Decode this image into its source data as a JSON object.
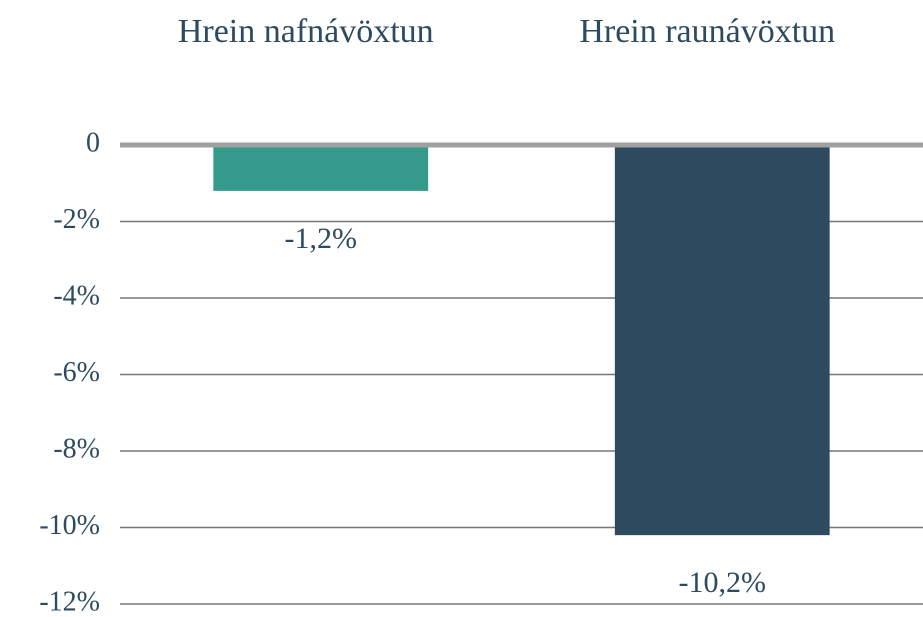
{
  "chart_data": {
    "type": "bar",
    "categories": [
      "Hrein nafnávöxtun",
      "Hrein raunávöxtun"
    ],
    "values": [
      -1.2,
      -10.2
    ],
    "value_labels": [
      "-1,2%",
      "-10,2%"
    ],
    "colors": [
      "#339a8c",
      "#2e4a5f"
    ],
    "ylim": [
      -12,
      0
    ],
    "yticks": [
      {
        "value": -12,
        "label": "-12%"
      },
      {
        "value": -10,
        "label": "-10%"
      },
      {
        "value": -8,
        "label": "-8%"
      },
      {
        "value": -6,
        "label": "-6%"
      },
      {
        "value": -4,
        "label": "-4%"
      },
      {
        "value": -2,
        "label": "-2%"
      },
      0
    ],
    "grid": true
  }
}
